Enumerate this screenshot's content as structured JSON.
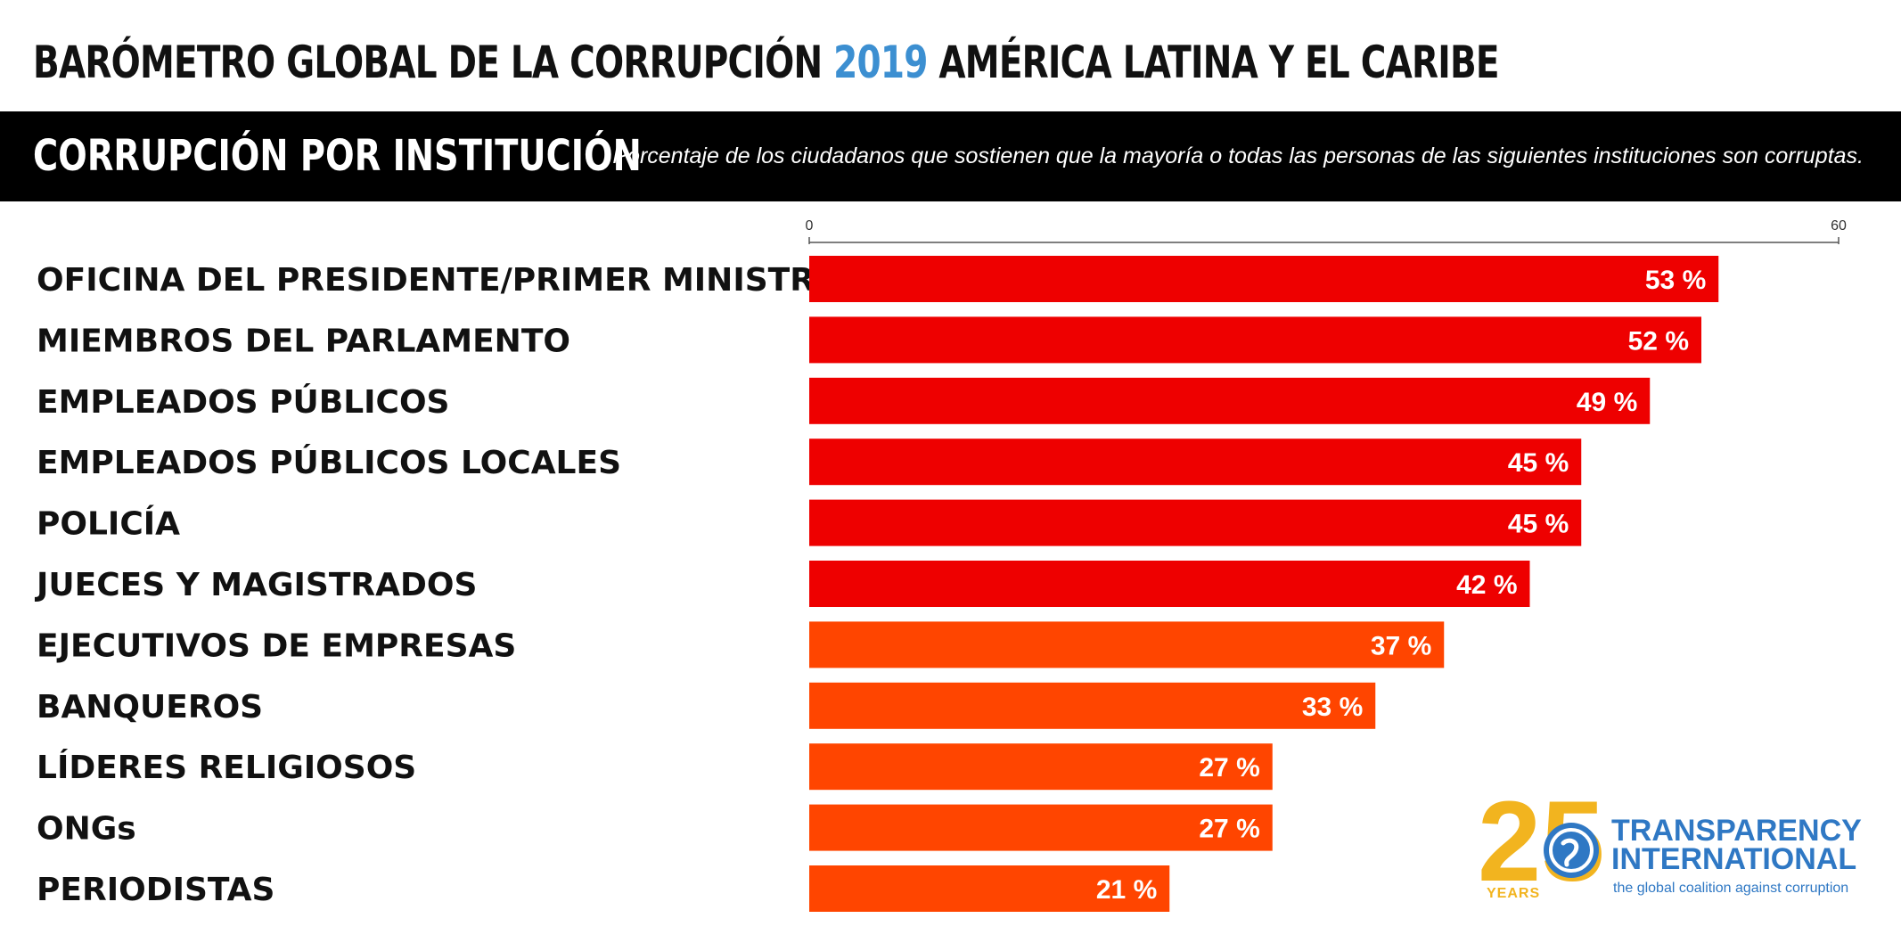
{
  "header": {
    "title_part1": "BARÓMETRO GLOBAL DE LA CORRUPCIÓN ",
    "title_year": "2019",
    "title_part2": " AMÉRICA LATINA Y EL CARIBE"
  },
  "section": {
    "title": "CORRUPCIÓN POR INSTITUCIÓN",
    "subtitle": "Porcentaje de los ciudadanos que sostienen que la mayoría o todas las personas de las siguientes instituciones son corruptas."
  },
  "chart_data": {
    "type": "bar",
    "orientation": "horizontal",
    "categories": [
      "OFICINA DEL PRESIDENTE/PRIMER MINISTRO",
      "MIEMBROS DEL PARLAMENTO",
      "EMPLEADOS PÚBLICOS",
      "EMPLEADOS PÚBLICOS LOCALES",
      "POLICÍA",
      "JUECES Y MAGISTRADOS",
      "EJECUTIVOS DE EMPRESAS",
      "BANQUEROS",
      "LÍDERES RELIGIOSOS",
      "ONGs",
      "PERIODISTAS"
    ],
    "values": [
      53,
      52,
      49,
      45,
      45,
      42,
      37,
      33,
      27,
      27,
      21
    ],
    "value_suffix": " %",
    "xlim": [
      0,
      60
    ],
    "x_ticks": [
      0,
      60
    ],
    "colors": [
      "#ee0000",
      "#ee0000",
      "#ee0000",
      "#ee0000",
      "#ee0000",
      "#ee0000",
      "#ff4500",
      "#ff4500",
      "#ff4500",
      "#ff4500",
      "#ff4500"
    ],
    "grid": false,
    "legend": "none"
  },
  "logo": {
    "number": "25",
    "years": "YEARS",
    "name_line1": "TRANSPARENCY",
    "name_line2": "INTERNATIONAL",
    "tagline": "the global coalition against corruption",
    "colors": {
      "number": "#f2b41f",
      "name": "#2f78c4"
    }
  }
}
